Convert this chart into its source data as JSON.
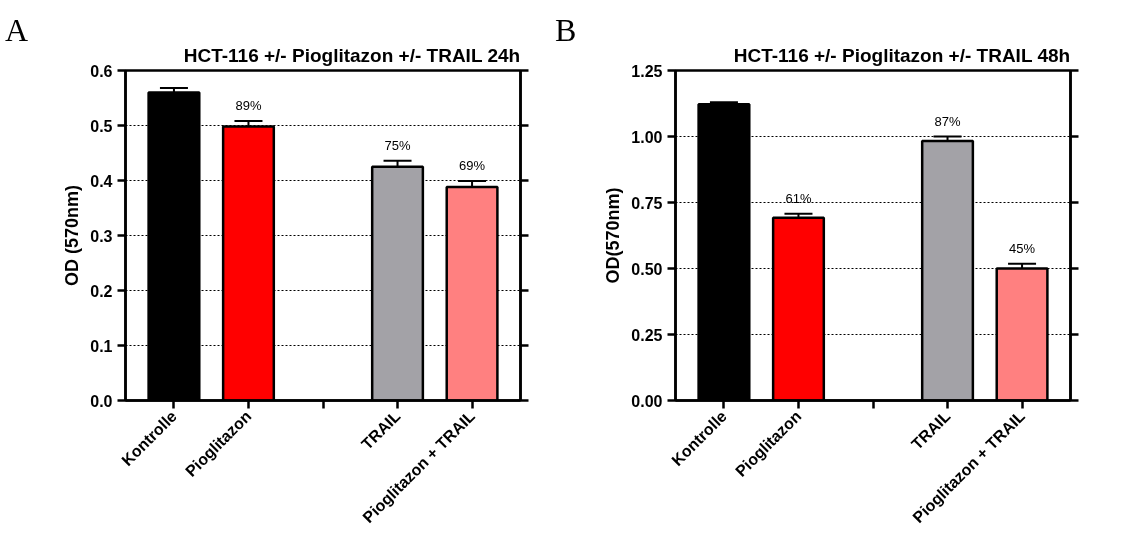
{
  "chart_data": [
    {
      "type": "bar",
      "title": "HCT-116 +/- Pioglitazon +/- TRAIL 24h",
      "ylabel": "OD (570nm)",
      "annotations": [
        "A",
        {
          "text": "89%",
          "x": "Pioglitazon",
          "y": 0.508
        },
        {
          "text": "75%",
          "x": "TRAIL",
          "y": 0.436
        },
        {
          "text": "69%",
          "x": "Pioglitazon + TRAIL",
          "y": 0.399
        }
      ],
      "categories": [
        "Kontrolle",
        "Pioglitazon",
        null,
        "TRAIL",
        "Pioglitazon + TRAIL"
      ],
      "values": [
        0.56,
        0.498,
        null,
        0.425,
        0.388
      ],
      "errors": [
        0.008,
        0.01,
        null,
        0.011,
        0.011
      ],
      "colors": [
        "#000000",
        "#ff0000",
        "#a3a2a7",
        "#a3a2a7",
        "#ff8080"
      ],
      "ylim": [
        0,
        0.6
      ],
      "yticks": [
        {
          "value": 0,
          "label": "0.0"
        },
        0.1,
        0.2,
        0.3,
        0.4,
        0.5,
        0.6
      ],
      "grid": "y"
    },
    {
      "type": "bar",
      "title": "HCT-116 +/- Pioglitazon +/- TRAIL 48h",
      "ylabel": "OD(570nm)",
      "annotations": [
        "B",
        {
          "text": "61%",
          "x": "Pioglitazon",
          "y": 0.707
        },
        {
          "text": "87%",
          "x": "TRAIL",
          "y": 1.0
        },
        {
          "text": "45%",
          "x": "Pioglitazon + TRAIL",
          "y": 0.518
        }
      ],
      "categories": [
        "Kontrolle",
        "Pioglitazon",
        null,
        "TRAIL",
        "Pioglitazon + TRAIL"
      ],
      "values": [
        1.122,
        0.692,
        null,
        0.983,
        0.5
      ],
      "errors": [
        0.008,
        0.015,
        null,
        0.017,
        0.018
      ],
      "colors": [
        "#000000",
        "#ff0000",
        "#a3a2a7",
        "#a3a2a7",
        "#ff8080"
      ],
      "ylim": [
        0,
        1.25
      ],
      "yticks": [
        {
          "value": 0,
          "label": "0.00"
        },
        0.25,
        {
          "value": 0.5,
          "label": "0.50"
        },
        0.75,
        {
          "value": 1,
          "label": "1.00"
        },
        1.25
      ],
      "grid": "y"
    }
  ]
}
